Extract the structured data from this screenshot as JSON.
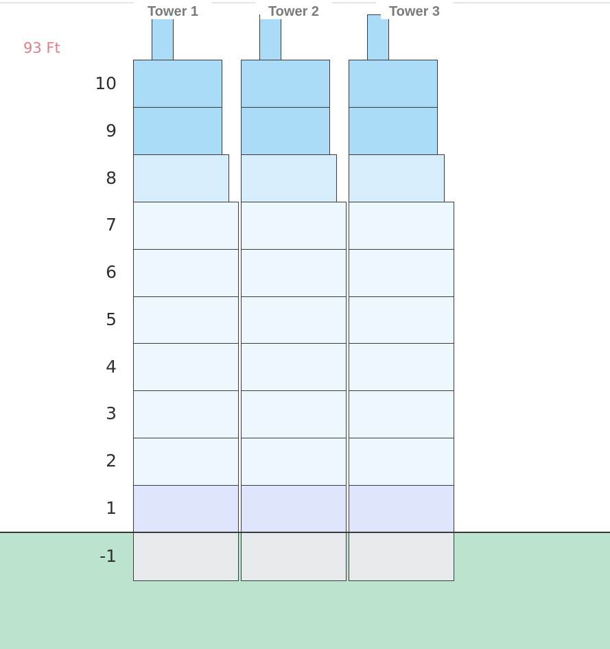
{
  "height_label": "93 Ft",
  "floor_labels": [
    "10",
    "9",
    "8",
    "7",
    "6",
    "5",
    "4",
    "3",
    "2",
    "1",
    "-1"
  ],
  "towers": [
    {
      "name": "Tower 1"
    },
    {
      "name": "Tower 2"
    },
    {
      "name": "Tower 3"
    }
  ],
  "colors": {
    "upper_floors": "#aadcf8",
    "setback_floor": "#d6eefc",
    "mid_floors": "#ecf8fe",
    "ground_floor": "#dfe5fd",
    "basement": "#e7ebee",
    "ground": "#bde4ce",
    "height_label": "#e07f86",
    "outline": "#3a3a3a"
  }
}
